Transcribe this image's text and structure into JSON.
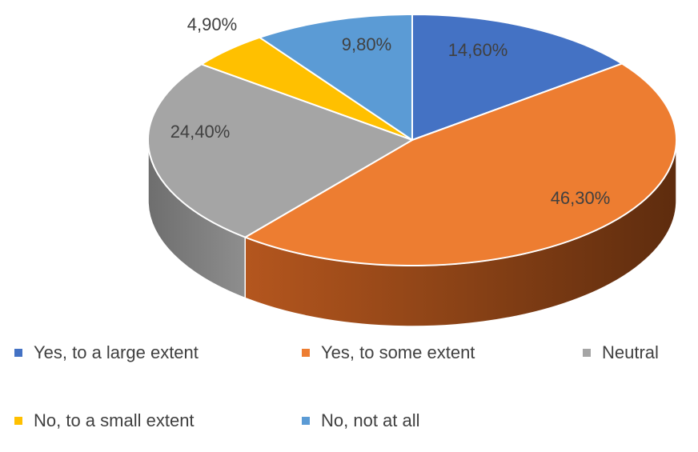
{
  "chart_data": {
    "type": "pie",
    "style": "3d",
    "title": "",
    "categories": [
      "Yes, to a large extent",
      "Yes, to some extent",
      "Neutral",
      "No, to a small extent",
      "No, not at all"
    ],
    "values": [
      14.6,
      46.3,
      24.4,
      4.9,
      9.8
    ],
    "data_labels": [
      "14,60%",
      "46,30%",
      "24,40%",
      "4,90%",
      "9,80%"
    ],
    "colors": [
      "#4472C4",
      "#ED7D31",
      "#A5A5A5",
      "#FFC000",
      "#5B9BD5"
    ],
    "legend_position": "bottom"
  },
  "legend": {
    "items": [
      {
        "label": "Yes, to a large extent",
        "color": "#4472C4"
      },
      {
        "label": "Yes, to some extent",
        "color": "#ED7D31"
      },
      {
        "label": "Neutral",
        "color": "#A5A5A5"
      },
      {
        "label": "No, to a small extent",
        "color": "#FFC000"
      },
      {
        "label": "No, not at all",
        "color": "#5B9BD5"
      }
    ]
  }
}
